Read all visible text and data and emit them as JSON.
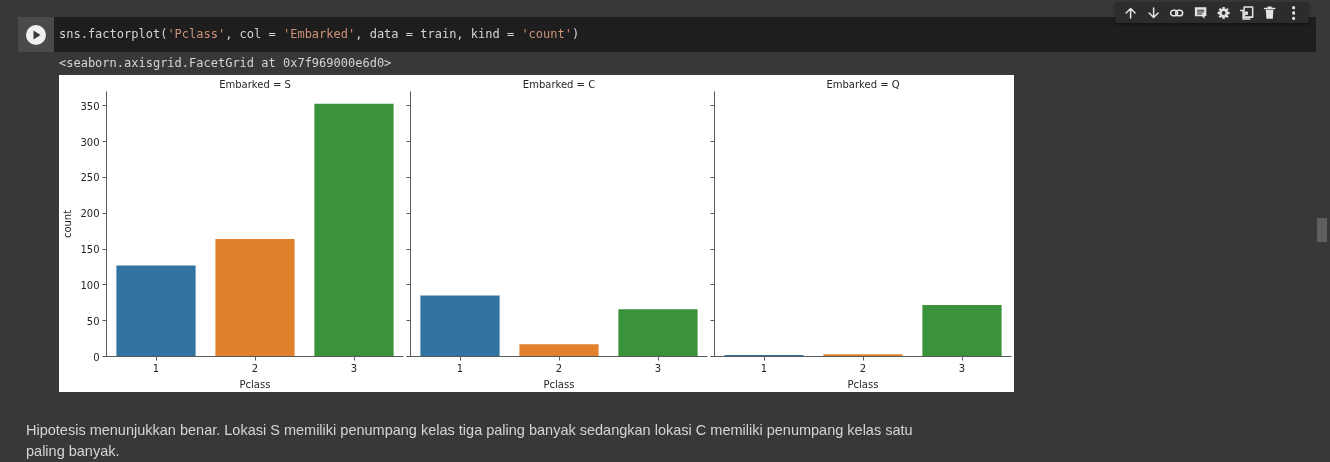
{
  "chart_data": [
    {
      "type": "bar",
      "title": "Embarked = S",
      "xlabel": "Pclass",
      "ylabel": "count",
      "categories": [
        "1",
        "2",
        "3"
      ],
      "values": [
        127,
        164,
        353
      ],
      "colors": [
        "#3274a1",
        "#e1812c",
        "#3a923a"
      ],
      "ylim": [
        0,
        370
      ],
      "yticks": [
        0,
        50,
        100,
        150,
        200,
        250,
        300,
        350
      ],
      "annotations": [
        "sns.factorplot('Pclass', col = 'Embarked', data = train, kind = 'count')",
        "<seaborn.axisgrid.FacetGrid at 0x7f969000e6d0>",
        "Hipotesis menunjukkan benar. Lokasi S memiliki penumpang kelas tiga paling banyak sedangkan lokasi C memiliki penumpang kelas satu paling banyak."
      ]
    },
    {
      "type": "bar",
      "title": "Embarked = C",
      "xlabel": "Pclass",
      "categories": [
        "1",
        "2",
        "3"
      ],
      "values": [
        85,
        17,
        66
      ],
      "colors": [
        "#3274a1",
        "#e1812c",
        "#3a923a"
      ],
      "ylim": [
        0,
        370
      ],
      "yticks": [
        0,
        50,
        100,
        150,
        200,
        250,
        300,
        350
      ],
      "tick_labels": "x"
    },
    {
      "type": "bar",
      "title": "Embarked = Q",
      "xlabel": "Pclass",
      "categories": [
        "1",
        "2",
        "3"
      ],
      "values": [
        2,
        3,
        72
      ],
      "colors": [
        "#3274a1",
        "#e1812c",
        "#3a923a"
      ],
      "ylim": [
        0,
        370
      ],
      "yticks": [
        0,
        50,
        100,
        150,
        200,
        250,
        300,
        350
      ],
      "tick_labels": "x"
    }
  ]
}
